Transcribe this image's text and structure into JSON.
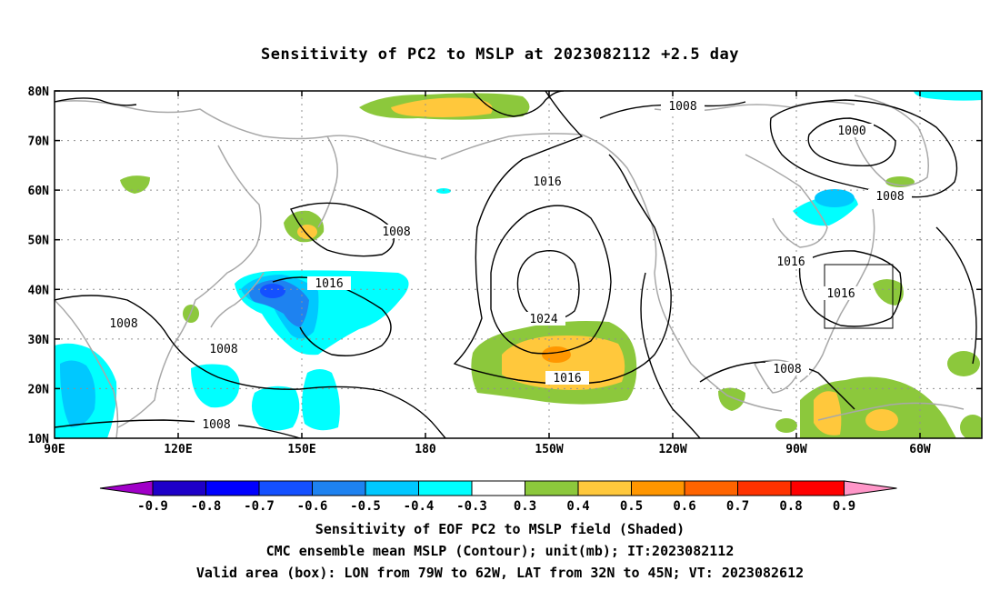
{
  "title": "Sensitivity of PC2 to MSLP at 2023082112 +2.5 day",
  "map": {
    "lat_labels": [
      "80N",
      "70N",
      "60N",
      "50N",
      "40N",
      "30N",
      "20N",
      "10N"
    ],
    "lon_labels": [
      "90E",
      "120E",
      "150E",
      "180",
      "150W",
      "120W",
      "90W",
      "60W"
    ],
    "contour_labels": [
      "1008",
      "1000",
      "1008",
      "1016",
      "1008",
      "1016",
      "1016",
      "1016",
      "1024",
      "1016",
      "1008",
      "1008",
      "1008",
      "1008"
    ],
    "valid_box": {
      "lon_min": "79W",
      "lon_max": "62W",
      "lat_min": "32N",
      "lat_max": "45N"
    }
  },
  "colorbar": {
    "labels": [
      "-0.9",
      "-0.8",
      "-0.7",
      "-0.6",
      "-0.5",
      "-0.4",
      "-0.3",
      "0.3",
      "0.4",
      "0.5",
      "0.6",
      "0.7",
      "0.8",
      "0.9"
    ],
    "colors": [
      "#a000c8",
      "#1e00c8",
      "#0000ff",
      "#1450ff",
      "#1e82f0",
      "#00c8ff",
      "#00ffff",
      "#ffffff",
      "#8cc83c",
      "#ffc83c",
      "#ff9600",
      "#ff6400",
      "#ff3200",
      "#ff0000",
      "#ff96c8"
    ]
  },
  "captions": [
    "Sensitivity of EOF PC2 to MSLP field (Shaded)",
    "CMC ensemble mean MSLP (Contour); unit(mb); IT:2023082112",
    "Valid area (box): LON from 79W to 62W, LAT from 32N to 45N; VT: 2023082612"
  ]
}
